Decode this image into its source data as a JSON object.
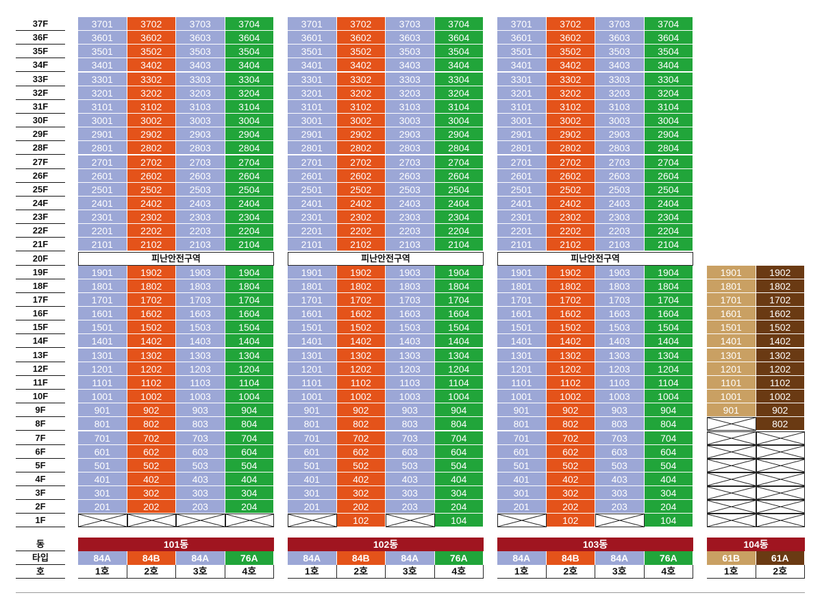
{
  "floors": [
    "37F",
    "36F",
    "35F",
    "34F",
    "33F",
    "32F",
    "31F",
    "30F",
    "29F",
    "28F",
    "27F",
    "26F",
    "25F",
    "24F",
    "23F",
    "22F",
    "21F",
    "20F",
    "19F",
    "18F",
    "17F",
    "16F",
    "15F",
    "14F",
    "13F",
    "12F",
    "11F",
    "10F",
    "9F",
    "8F",
    "7F",
    "6F",
    "5F",
    "4F",
    "3F",
    "2F",
    "1F"
  ],
  "refuge_label": "피난안전구역",
  "refuge_floor": 20,
  "bottom_labels": {
    "dong": "동",
    "type": "타입",
    "ho": "호"
  },
  "colors": {
    "84A": "#9ca7d6",
    "84B": "#e4531a",
    "76A": "#21a53a",
    "61B": "#c9a063",
    "61A": "#6a3a13",
    "dong_bar": "#a01520"
  },
  "buildings": [
    {
      "name": "101동",
      "top_floor": 37,
      "min_floor": 2,
      "units": [
        {
          "ho": "1호",
          "type": "84A"
        },
        {
          "ho": "2호",
          "type": "84B"
        },
        {
          "ho": "3호",
          "type": "84A"
        },
        {
          "ho": "4호",
          "type": "76A"
        }
      ],
      "first_floor": [
        null,
        null,
        null,
        null
      ]
    },
    {
      "name": "102동",
      "top_floor": 37,
      "min_floor": 2,
      "units": [
        {
          "ho": "1호",
          "type": "84A"
        },
        {
          "ho": "2호",
          "type": "84B"
        },
        {
          "ho": "3호",
          "type": "84A"
        },
        {
          "ho": "4호",
          "type": "76A"
        }
      ],
      "first_floor": [
        null,
        "102",
        null,
        "104"
      ]
    },
    {
      "name": "103동",
      "top_floor": 37,
      "min_floor": 2,
      "units": [
        {
          "ho": "1호",
          "type": "84A"
        },
        {
          "ho": "2호",
          "type": "84B"
        },
        {
          "ho": "3호",
          "type": "84A"
        },
        {
          "ho": "4호",
          "type": "76A"
        }
      ],
      "first_floor": [
        null,
        "102",
        null,
        "104"
      ]
    },
    {
      "name": "104동",
      "top_floor": 19,
      "min_floor": 9,
      "min_floor_by_unit": [
        9,
        8
      ],
      "units": [
        {
          "ho": "1호",
          "type": "61B"
        },
        {
          "ho": "2호",
          "type": "61A"
        }
      ],
      "first_floor": [
        null,
        null
      ]
    }
  ]
}
